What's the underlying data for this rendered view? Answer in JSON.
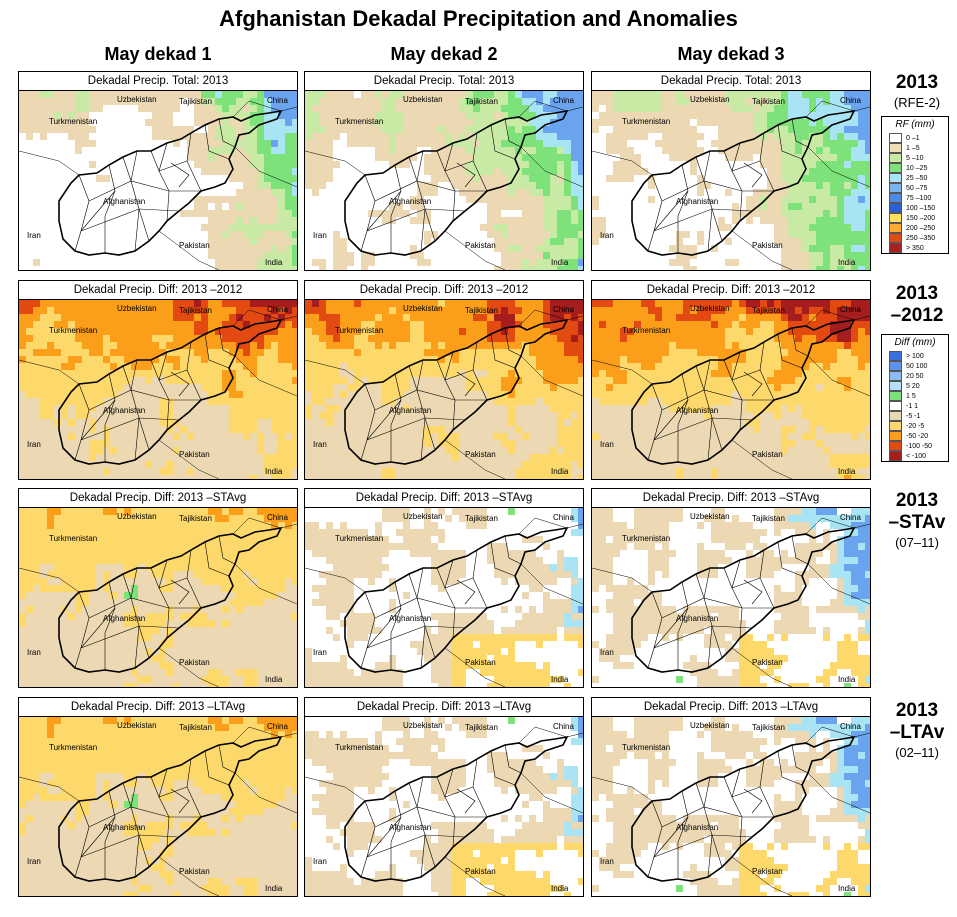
{
  "title": "Afghanistan Dekadal Precipitation and Anomalies",
  "columns": [
    "May dekad 1",
    "May dekad 2",
    "May dekad 3"
  ],
  "rows": [
    {
      "panel_title": "Dekadal Precip. Total: 2013",
      "label_big": [
        "2013"
      ],
      "label_small": [
        "(RFE-2)"
      ],
      "scheme": "total"
    },
    {
      "panel_title": "Dekadal Precip. Diff:  2013 –2012",
      "label_big": [
        "2013",
        "–2012"
      ],
      "label_small": [],
      "scheme": "diff_2012"
    },
    {
      "panel_title": "Dekadal Precip. Diff:  2013 –STAvg",
      "label_big": [
        "2013",
        "–STAv"
      ],
      "label_small": [
        "(07–11)"
      ],
      "scheme": "diff_st"
    },
    {
      "panel_title": "Dekadal Precip. Diff:  2013 –LTAvg",
      "label_big": [
        "2013",
        "–LTAv"
      ],
      "label_small": [
        "(02–11)"
      ],
      "scheme": "diff_lt"
    }
  ],
  "place_labels": {
    "uzbekistan": "Uzbekistan",
    "tajikistan": "Tajikistan",
    "china": "China",
    "turkmenistan": "Turkmenistan",
    "afghanistan": "Afghanistan",
    "iran": "Iran",
    "pakistan": "Pakistan",
    "india": "India"
  },
  "legend_rf": {
    "title": "RF (mm)",
    "items": [
      {
        "label": "0 –1",
        "color": "#ffffff"
      },
      {
        "label": "1 –5",
        "color": "#f0ddb8"
      },
      {
        "label": "5 –10",
        "color": "#c9eaa4"
      },
      {
        "label": "10 –25",
        "color": "#7de27a"
      },
      {
        "label": "25 –50",
        "color": "#a8e4f4"
      },
      {
        "label": "50 –75",
        "color": "#7cb4f2"
      },
      {
        "label": "75 –100",
        "color": "#4f89e6"
      },
      {
        "label": "100 –150",
        "color": "#2c5fd6"
      },
      {
        "label": "150 –200",
        "color": "#ffe060"
      },
      {
        "label": "200 –250",
        "color": "#ffac30"
      },
      {
        "label": "250 –350",
        "color": "#e04a18"
      },
      {
        "label": "> 350",
        "color": "#a82020"
      }
    ]
  },
  "legend_diff": {
    "title": "Diff (mm)",
    "items": [
      {
        "label": "> 100",
        "color": "#3b6fe0"
      },
      {
        "label": "50  100",
        "color": "#5f92ec"
      },
      {
        "label": "20  50",
        "color": "#8cbcf4"
      },
      {
        "label": "5  20",
        "color": "#b7dff8"
      },
      {
        "label": "1  5",
        "color": "#7ce07c"
      },
      {
        "label": "-1  1",
        "color": "#ffffff"
      },
      {
        "label": "-5  -1",
        "color": "#ead7b5"
      },
      {
        "label": "-20  -5",
        "color": "#fcd670"
      },
      {
        "label": "-50  -20",
        "color": "#fb9e1a"
      },
      {
        "label": "-100  -50",
        "color": "#e24a12"
      },
      {
        "label": "< -100",
        "color": "#a51d1d"
      }
    ]
  },
  "colors": {
    "white": "#ffffff",
    "tan": "#ecd9b3",
    "light_green": "#c9eaa4",
    "green": "#7de27a",
    "light_blue": "#a8e4f4",
    "blue": "#6aa3ee",
    "yellow": "#fdd86a",
    "orange": "#fb9e1a",
    "red_orange": "#e24a12",
    "dark_red": "#a51d1d"
  }
}
